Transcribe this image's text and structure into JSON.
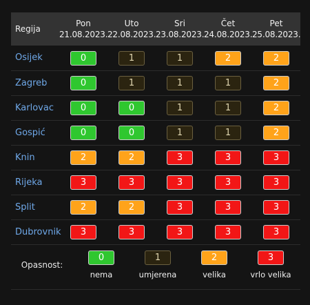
{
  "table": {
    "region_header": "Regija",
    "days": [
      {
        "day": "Pon",
        "date": "21.08.2023."
      },
      {
        "day": "Uto",
        "date": "22.08.2023."
      },
      {
        "day": "Sri",
        "date": "23.08.2023."
      },
      {
        "day": "Čet",
        "date": "24.08.2023."
      },
      {
        "day": "Pet",
        "date": "25.08.2023."
      }
    ],
    "rows": [
      {
        "region": "Osijek",
        "levels": [
          "0",
          "1",
          "1",
          "2",
          "2"
        ]
      },
      {
        "region": "Zagreb",
        "levels": [
          "0",
          "1",
          "1",
          "1",
          "2"
        ]
      },
      {
        "region": "Karlovac",
        "levels": [
          "0",
          "0",
          "1",
          "1",
          "2"
        ]
      },
      {
        "region": "Gospić",
        "levels": [
          "0",
          "0",
          "1",
          "1",
          "2"
        ]
      },
      {
        "region": "Knin",
        "levels": [
          "2",
          "2",
          "3",
          "3",
          "3"
        ]
      },
      {
        "region": "Rijeka",
        "levels": [
          "3",
          "3",
          "3",
          "3",
          "3"
        ]
      },
      {
        "region": "Split",
        "levels": [
          "2",
          "2",
          "3",
          "3",
          "3"
        ]
      },
      {
        "region": "Dubrovnik",
        "levels": [
          "3",
          "3",
          "3",
          "3",
          "3"
        ]
      }
    ]
  },
  "legend": {
    "label": "Opasnost:",
    "items": [
      {
        "value": "0",
        "text": "nema"
      },
      {
        "value": "1",
        "text": "umjerena"
      },
      {
        "value": "2",
        "text": "velika"
      },
      {
        "value": "3",
        "text": "vrlo velika"
      }
    ]
  },
  "colors": {
    "level0": "#2fc72f",
    "level1": "#2b2410",
    "level2": "#ffa31a",
    "level3": "#f21616",
    "header_bg": "#333333",
    "region_link": "#6fa8e8"
  }
}
